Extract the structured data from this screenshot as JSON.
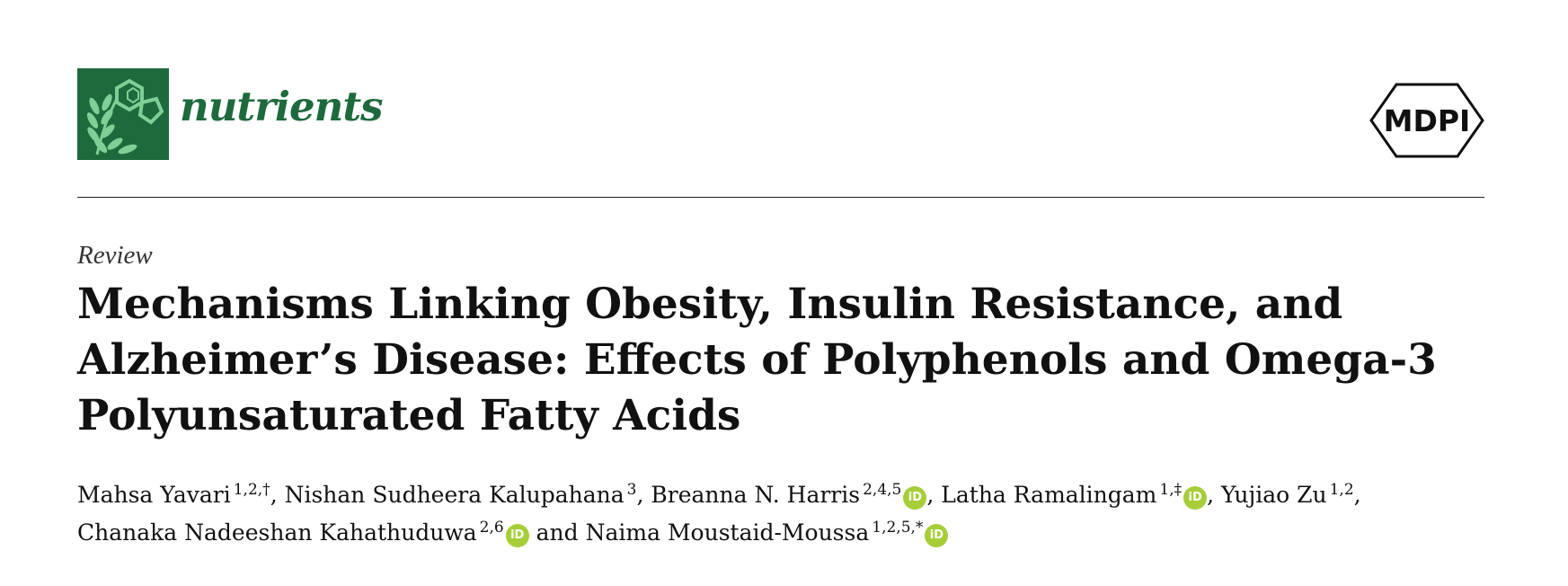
{
  "header": {
    "journal_name": "nutrients",
    "publisher": "MDPI",
    "brand_color": "#1e6a3c",
    "logo_icon": "wheat-molecule-logo-icon"
  },
  "article": {
    "type": "Review",
    "title_lines": [
      "Mechanisms Linking Obesity, Insulin Resistance, and",
      "Alzheimer’s Disease: Effects of Polyphenols and Omega-3",
      "Polyunsaturated Fatty Acids"
    ],
    "authors": [
      {
        "name": "Mahsa Yavari",
        "affiliations": "1,2,†",
        "orcid": false
      },
      {
        "name": "Nishan Sudheera Kalupahana",
        "affiliations": "3",
        "orcid": false
      },
      {
        "name": "Breanna N. Harris",
        "affiliations": "2,4,5",
        "orcid": true
      },
      {
        "name": "Latha Ramalingam",
        "affiliations": "1,‡",
        "orcid": true
      },
      {
        "name": "Yujiao Zu",
        "affiliations": "1,2",
        "orcid": false
      },
      {
        "name": "Chanaka Nadeeshan Kahathuduwa",
        "affiliations": "2,6",
        "orcid": true
      },
      {
        "name": "Naima Moustaid-Moussa",
        "affiliations": "1,2,5,*",
        "orcid": true
      }
    ],
    "separator": ",",
    "conjunction": "and",
    "orcid_label": "iD",
    "orcid_color": "#a6ce39"
  }
}
